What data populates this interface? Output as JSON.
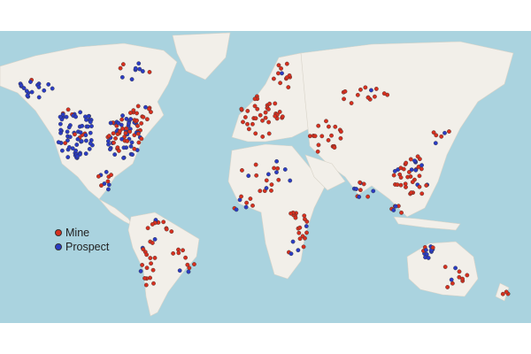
{
  "map": {
    "ocean_color": "#aad3df",
    "land_color": "#f2efe9",
    "legend": [
      {
        "label": "Mine",
        "color": "#d7301f"
      },
      {
        "label": "Prospect",
        "color": "#2b3cc4"
      }
    ]
  }
}
